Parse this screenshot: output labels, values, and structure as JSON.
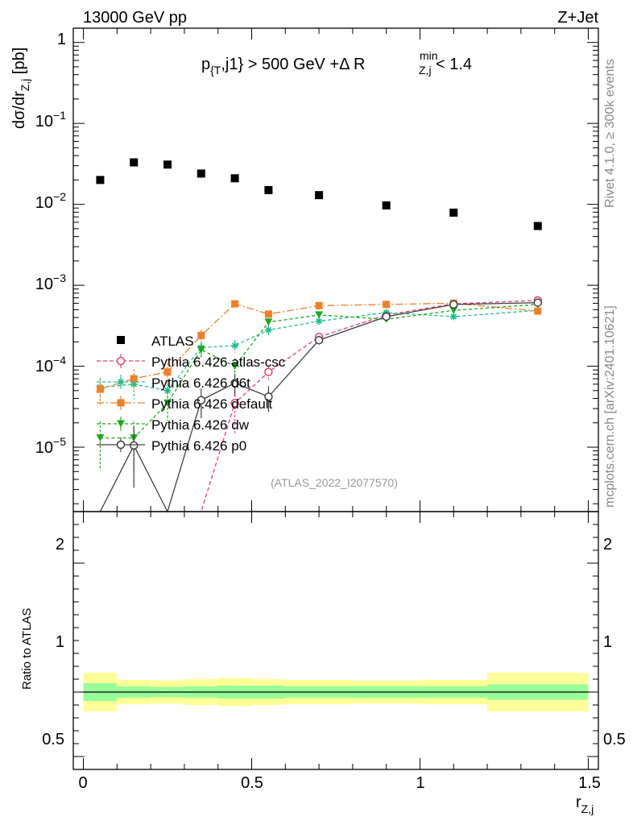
{
  "header": {
    "energy_label": "13000 GeV pp",
    "process_label": "Z+Jet",
    "cut_label": {
      "p1": "p",
      "p1_sub": "{T",
      "p2": ",j1} > 500 GeV +Δ R",
      "p2_sup": "min",
      "p2_sub": "Z,j",
      "p3": " < 1.4"
    }
  },
  "sidebar": {
    "rivet_label": "Rivet 4.1.0, ≥ 300k events",
    "source_label": "mcplots.cern.ch [arXiv:2401.10621]"
  },
  "watermark": "(ATLAS_2022_I2077570)",
  "axes": {
    "ylabel_main": {
      "a": "dσ/dr",
      "sub": "Z,j",
      "b": " [pb]"
    },
    "ylabel_ratio": "Ratio to ATLAS",
    "xlabel": {
      "a": "r",
      "sub": "Z,j"
    },
    "main_yticks": [
      {
        "m": "1",
        "e": ""
      },
      {
        "m": "10",
        "e": "−1"
      },
      {
        "m": "10",
        "e": "−2"
      },
      {
        "m": "10",
        "e": "−3"
      },
      {
        "m": "10",
        "e": "−4"
      },
      {
        "m": "10",
        "e": "−5"
      }
    ],
    "ratio_yticks": [
      "2",
      "1",
      "0.5"
    ],
    "xticks": [
      "0",
      "0.5",
      "1",
      "1.5"
    ]
  },
  "chart_data": {
    "type": "scatter",
    "title": "p_{T},j1} > 500 GeV +Δ R_{Z,j}^{min} < 1.4",
    "xlabel": "r_{Z,j}",
    "ylabel": "dσ/dr_{Z,j} [pb]",
    "yscale": "log",
    "xlim": [
      -0.03,
      1.53
    ],
    "ylim": [
      1.6e-06,
      1.5
    ],
    "ratio_ylim": [
      0.4,
      2.4
    ],
    "x": [
      0.05,
      0.15,
      0.25,
      0.35,
      0.45,
      0.55,
      0.7,
      0.9,
      1.1,
      1.35
    ],
    "bins": [
      [
        0,
        0.1
      ],
      [
        0.1,
        0.2
      ],
      [
        0.2,
        0.3
      ],
      [
        0.3,
        0.4
      ],
      [
        0.4,
        0.5
      ],
      [
        0.5,
        0.6
      ],
      [
        0.6,
        0.8
      ],
      [
        0.8,
        1.0
      ],
      [
        1.0,
        1.2
      ],
      [
        1.2,
        1.5
      ]
    ],
    "reference": {
      "name": "ATLAS",
      "values": [
        0.02,
        0.033,
        0.031,
        0.024,
        0.021,
        0.015,
        0.013,
        0.0097,
        0.0079,
        0.0054
      ],
      "ratio_band_stat": [
        0.14,
        0.09,
        0.08,
        0.09,
        0.1,
        0.1,
        0.09,
        0.09,
        0.09,
        0.12
      ],
      "ratio_band_total": [
        0.3,
        0.19,
        0.18,
        0.2,
        0.22,
        0.2,
        0.19,
        0.18,
        0.19,
        0.3
      ]
    },
    "series": [
      {
        "name": "Pythia 6.426 atlas-csc",
        "color": "#e8436d",
        "dash": "5,3",
        "marker": "circle-open",
        "values": [
          null,
          null,
          null,
          null,
          3.5e-05,
          8.5e-05,
          0.00023,
          0.00043,
          0.00059,
          0.00065
        ],
        "err": [
          null,
          null,
          null,
          null,
          0.6,
          0.2,
          0.12,
          0.08,
          0.05,
          0.05
        ]
      },
      {
        "name": "Pythia 6.426 d6t",
        "color": "#1bbf8b",
        "dash": "4,3",
        "marker": "star",
        "values": [
          5.5e-05,
          6e-05,
          5e-05,
          0.00017,
          0.00018,
          0.00028,
          0.00036,
          0.00046,
          0.00041,
          0.00049
        ],
        "err": [
          0.3,
          0.35,
          0.35,
          0.2,
          0.18,
          0.14,
          0.1,
          0.08,
          0.06,
          0.05
        ]
      },
      {
        "name": "Pythia 6.426 default",
        "color": "#f07f2a",
        "dash": "9,3,2,3",
        "marker": "square",
        "values": [
          5.2e-05,
          7e-05,
          8.5e-05,
          0.00024,
          0.00059,
          0.00044,
          0.00056,
          0.00058,
          0.0006,
          0.00048
        ],
        "err": [
          0.35,
          0.3,
          0.3,
          0.18,
          0.1,
          0.1,
          0.07,
          0.06,
          0.05,
          0.05
        ]
      },
      {
        "name": "Pythia 6.426 dw",
        "color": "#1aaa1a",
        "dash": "4,3",
        "marker": "triangle-down",
        "values": [
          1.3e-05,
          1.3e-05,
          3.5e-05,
          0.00016,
          0.0001,
          0.00035,
          0.00043,
          0.00038,
          0.00049,
          0.00058
        ],
        "err": [
          0.6,
          0.6,
          0.4,
          0.2,
          0.25,
          0.12,
          0.1,
          0.08,
          0.06,
          0.05
        ]
      },
      {
        "name": "Pythia 6.426 p0",
        "color": "#404040",
        "dash": "",
        "marker": "circle-open",
        "values": [
          null,
          1.05e-05,
          null,
          3.8e-05,
          6.2e-05,
          4.2e-05,
          0.00021,
          0.00041,
          0.00058,
          0.00061
        ],
        "err": [
          null,
          0.7,
          null,
          0.4,
          0.3,
          0.35,
          0.12,
          0.08,
          0.06,
          0.05
        ]
      }
    ]
  }
}
